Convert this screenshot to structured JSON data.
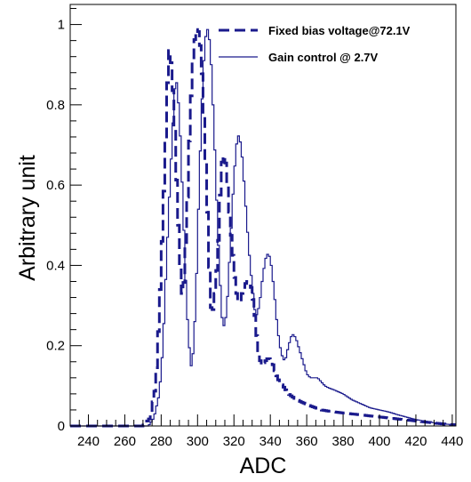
{
  "chart_data": {
    "type": "line",
    "title": "",
    "xlabel": "ADC",
    "ylabel": "Arbitrary unit",
    "xlim": [
      230,
      442
    ],
    "ylim": [
      0,
      1.05
    ],
    "x_ticks": [
      240,
      260,
      280,
      300,
      320,
      340,
      360,
      380,
      400,
      420,
      440
    ],
    "x_tick_labels": [
      "240",
      "260",
      "280",
      "300",
      "320",
      "340",
      "360",
      "380",
      "400",
      "420",
      "440"
    ],
    "y_ticks": [
      0,
      0.2,
      0.4,
      0.6,
      0.8,
      1
    ],
    "y_tick_labels": [
      "0",
      "0.2",
      "0.4",
      "0.6",
      "0.8",
      "1"
    ],
    "grid": false,
    "legend_position": "top-right",
    "bin_width": 1,
    "series": [
      {
        "name": "Fixed bias voltage@72.1V",
        "style": "dashed-thick",
        "color": "#1a1a8c",
        "anchors": [
          [
            230,
            0
          ],
          [
            270,
            0
          ],
          [
            274,
            0.02
          ],
          [
            277,
            0.1
          ],
          [
            279,
            0.28
          ],
          [
            281,
            0.52
          ],
          [
            283,
            0.78
          ],
          [
            284,
            0.93
          ],
          [
            285,
            0.94
          ],
          [
            287,
            0.8
          ],
          [
            289,
            0.55
          ],
          [
            291,
            0.35
          ],
          [
            292,
            0.31
          ],
          [
            294,
            0.5
          ],
          [
            296,
            0.78
          ],
          [
            298,
            0.95
          ],
          [
            300,
            1.0
          ],
          [
            302,
            0.93
          ],
          [
            304,
            0.72
          ],
          [
            306,
            0.47
          ],
          [
            307,
            0.32
          ],
          [
            308,
            0.27
          ],
          [
            310,
            0.35
          ],
          [
            312,
            0.5
          ],
          [
            313,
            0.65
          ],
          [
            315,
            0.68
          ],
          [
            316,
            0.63
          ],
          [
            318,
            0.5
          ],
          [
            320,
            0.4
          ],
          [
            321,
            0.34
          ],
          [
            323,
            0.3
          ],
          [
            325,
            0.34
          ],
          [
            327,
            0.36
          ],
          [
            329,
            0.36
          ],
          [
            331,
            0.3
          ],
          [
            333,
            0.2
          ],
          [
            335,
            0.15
          ],
          [
            337,
            0.16
          ],
          [
            339,
            0.17
          ],
          [
            341,
            0.16
          ],
          [
            343,
            0.13
          ],
          [
            345,
            0.11
          ],
          [
            347,
            0.1
          ],
          [
            350,
            0.08
          ],
          [
            353,
            0.07
          ],
          [
            357,
            0.06
          ],
          [
            362,
            0.05
          ],
          [
            368,
            0.04
          ],
          [
            375,
            0.035
          ],
          [
            385,
            0.03
          ],
          [
            395,
            0.025
          ],
          [
            405,
            0.02
          ],
          [
            415,
            0.015
          ],
          [
            425,
            0.01
          ],
          [
            435,
            0.005
          ],
          [
            442,
            0.003
          ]
        ]
      },
      {
        "name": "Gain control @ 2.7V",
        "style": "solid-thin",
        "color": "#1a1a8c",
        "anchors": [
          [
            230,
            0
          ],
          [
            273,
            0
          ],
          [
            276,
            0.02
          ],
          [
            279,
            0.08
          ],
          [
            281,
            0.2
          ],
          [
            283,
            0.42
          ],
          [
            285,
            0.62
          ],
          [
            287,
            0.8
          ],
          [
            288,
            0.88
          ],
          [
            290,
            0.78
          ],
          [
            292,
            0.55
          ],
          [
            294,
            0.3
          ],
          [
            296,
            0.16
          ],
          [
            297,
            0.14
          ],
          [
            299,
            0.3
          ],
          [
            301,
            0.62
          ],
          [
            303,
            0.88
          ],
          [
            305,
            1.0
          ],
          [
            307,
            0.95
          ],
          [
            309,
            0.75
          ],
          [
            311,
            0.5
          ],
          [
            313,
            0.3
          ],
          [
            314,
            0.24
          ],
          [
            316,
            0.28
          ],
          [
            318,
            0.45
          ],
          [
            320,
            0.62
          ],
          [
            322,
            0.73
          ],
          [
            324,
            0.7
          ],
          [
            326,
            0.58
          ],
          [
            328,
            0.45
          ],
          [
            330,
            0.35
          ],
          [
            332,
            0.27
          ],
          [
            334,
            0.3
          ],
          [
            336,
            0.38
          ],
          [
            338,
            0.43
          ],
          [
            340,
            0.42
          ],
          [
            342,
            0.34
          ],
          [
            344,
            0.24
          ],
          [
            346,
            0.18
          ],
          [
            348,
            0.16
          ],
          [
            350,
            0.2
          ],
          [
            352,
            0.23
          ],
          [
            354,
            0.22
          ],
          [
            356,
            0.19
          ],
          [
            358,
            0.16
          ],
          [
            360,
            0.13
          ],
          [
            362,
            0.12
          ],
          [
            364,
            0.12
          ],
          [
            366,
            0.12
          ],
          [
            368,
            0.11
          ],
          [
            370,
            0.1
          ],
          [
            372,
            0.095
          ],
          [
            375,
            0.09
          ],
          [
            380,
            0.08
          ],
          [
            385,
            0.065
          ],
          [
            390,
            0.055
          ],
          [
            395,
            0.045
          ],
          [
            400,
            0.04
          ],
          [
            405,
            0.035
          ],
          [
            410,
            0.028
          ],
          [
            415,
            0.022
          ],
          [
            420,
            0.016
          ],
          [
            425,
            0.012
          ],
          [
            430,
            0.008
          ],
          [
            435,
            0.005
          ],
          [
            442,
            0.003
          ]
        ]
      }
    ]
  }
}
